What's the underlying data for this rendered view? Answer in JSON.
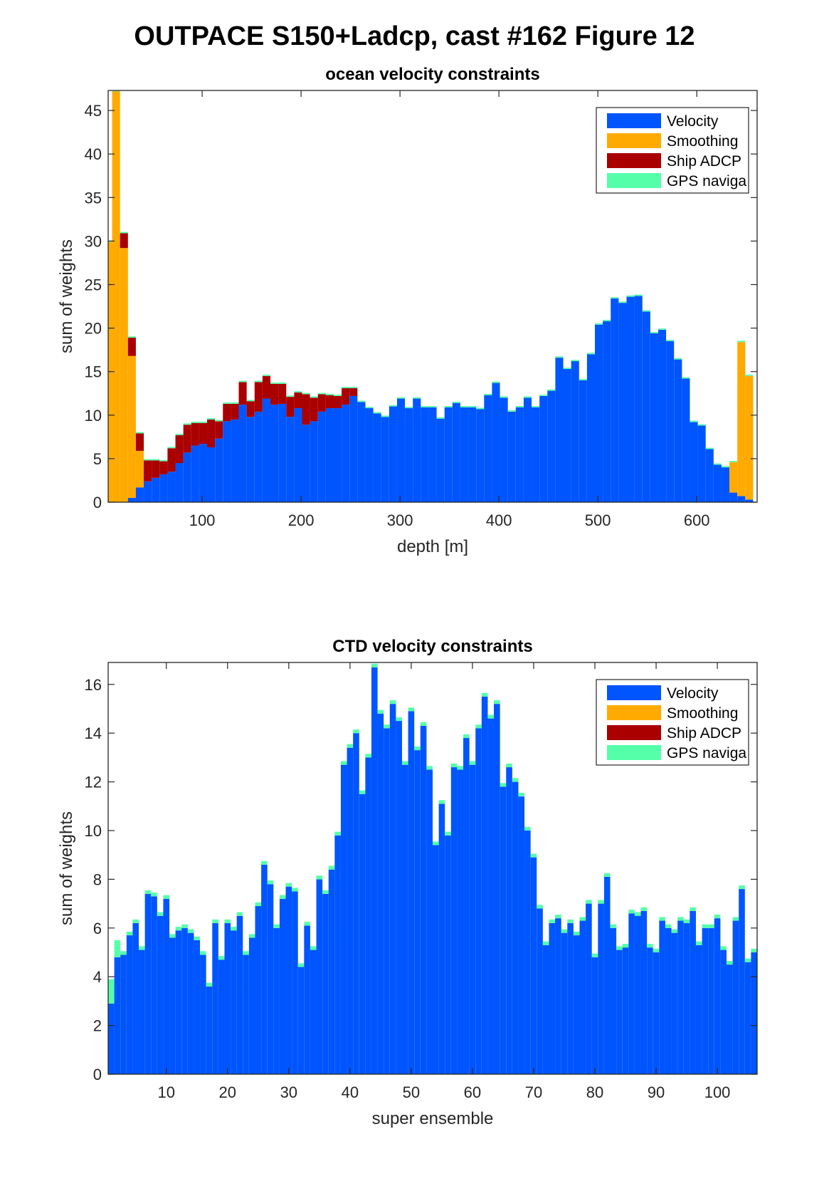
{
  "figure": {
    "title": "OUTPACE S150+Ladcp, cast #162  Figure 12"
  },
  "legend_colors": {
    "Velocity": "#0055ff",
    "Smoothing": "#ffaa00",
    "Ship ADCP": "#aa0000",
    "GPS naviga": "#55ffaa"
  },
  "chart_data": [
    {
      "type": "bar",
      "stacked": true,
      "title": "ocean velocity constraints",
      "xlabel": "depth [m]",
      "ylabel": "sum of weights",
      "xlim": [
        5,
        661
      ],
      "ylim": [
        0,
        47.3
      ],
      "xticks": [
        100,
        200,
        300,
        400,
        500,
        600
      ],
      "yticks": [
        0,
        5,
        10,
        15,
        20,
        25,
        30,
        35,
        40,
        45
      ],
      "grid": false,
      "legend_position": "top-right",
      "bin_width": 8,
      "x": [
        5,
        13,
        21,
        29,
        37,
        45,
        53,
        61,
        69,
        77,
        85,
        93,
        101,
        109,
        117,
        125,
        133,
        141,
        149,
        157,
        165,
        173,
        181,
        189,
        197,
        205,
        213,
        221,
        229,
        237,
        245,
        253,
        261,
        269,
        277,
        285,
        293,
        301,
        309,
        317,
        325,
        333,
        341,
        349,
        357,
        365,
        373,
        381,
        389,
        397,
        405,
        413,
        421,
        429,
        437,
        445,
        453,
        461,
        469,
        477,
        485,
        493,
        501,
        509,
        517,
        525,
        533,
        541,
        549,
        557,
        565,
        573,
        581,
        589,
        597,
        605,
        613,
        621,
        629,
        637,
        645,
        653
      ],
      "series": [
        {
          "name": "Velocity",
          "values": [
            0,
            0,
            0,
            0.5,
            1.7,
            2.4,
            2.8,
            3.2,
            3.5,
            4.5,
            5.7,
            6.5,
            6.7,
            6.3,
            7.3,
            9.3,
            9.5,
            11.2,
            9.8,
            10.4,
            11.9,
            11.2,
            11.3,
            9.8,
            10.8,
            8.9,
            9.3,
            10.4,
            10.8,
            10.8,
            11.2,
            12.2,
            11.5,
            10.8,
            10.2,
            9.8,
            11.0,
            11.9,
            10.8,
            11.9,
            10.9,
            10.9,
            9.6,
            10.9,
            11.4,
            10.9,
            10.9,
            10.7,
            12.3,
            13.7,
            12.0,
            10.4,
            10.9,
            12.0,
            10.9,
            12.2,
            12.8,
            16.6,
            15.3,
            16.2,
            14.0,
            17.0,
            20.4,
            20.8,
            23.4,
            22.9,
            23.6,
            23.7,
            21.9,
            19.4,
            19.8,
            18.5,
            16.4,
            14.2,
            9.2,
            8.8,
            6.1,
            4.3,
            4.0,
            1.1,
            0.7,
            0.3
          ]
        },
        {
          "name": "Smoothing",
          "values": [
            29.9,
            47.2,
            29.2,
            16.3,
            4.2,
            0,
            0,
            0,
            0,
            0,
            0,
            0,
            0,
            0,
            0,
            0,
            0,
            0,
            0,
            0,
            0,
            0,
            0,
            0,
            0,
            0,
            0,
            0,
            0,
            0,
            0,
            0,
            0,
            0,
            0,
            0,
            0,
            0,
            0,
            0,
            0,
            0,
            0,
            0,
            0,
            0,
            0,
            0,
            0,
            0,
            0,
            0,
            0,
            0,
            0,
            0,
            0,
            0,
            0,
            0,
            0,
            0,
            0,
            0,
            0,
            0,
            0,
            0,
            0,
            0,
            0,
            0,
            0,
            0,
            0,
            0,
            0,
            0,
            0,
            3.5,
            17.7,
            14.2
          ]
        },
        {
          "name": "Ship ADCP",
          "values": [
            0,
            0,
            1.7,
            2.1,
            2.0,
            2.4,
            2.0,
            1.5,
            2.7,
            3.2,
            3.2,
            2.6,
            2.4,
            3.2,
            2.0,
            2.0,
            1.8,
            2.6,
            1.8,
            3.4,
            2.6,
            2.4,
            2.3,
            2.3,
            1.8,
            3.5,
            2.7,
            2.0,
            1.5,
            1.4,
            1.9,
            0.9,
            0,
            0,
            0,
            0,
            0,
            0,
            0,
            0,
            0,
            0,
            0,
            0,
            0,
            0,
            0,
            0,
            0,
            0,
            0,
            0,
            0,
            0,
            0,
            0,
            0,
            0,
            0,
            0,
            0,
            0,
            0,
            0,
            0,
            0,
            0,
            0,
            0,
            0,
            0,
            0,
            0,
            0,
            0,
            0,
            0,
            0,
            0,
            0,
            0,
            0
          ]
        },
        {
          "name": "GPS naviga",
          "values": [
            0.15,
            0.15,
            0.15,
            0.15,
            0.15,
            0.15,
            0.15,
            0.15,
            0.15,
            0.15,
            0.15,
            0.15,
            0.15,
            0.15,
            0.15,
            0.15,
            0.15,
            0.15,
            0.15,
            0.15,
            0.15,
            0.15,
            0.15,
            0.15,
            0.15,
            0.15,
            0.15,
            0.15,
            0.15,
            0.15,
            0.15,
            0.15,
            0.15,
            0.15,
            0.15,
            0.15,
            0.15,
            0.15,
            0.15,
            0.15,
            0.15,
            0.15,
            0.15,
            0.15,
            0.15,
            0.15,
            0.15,
            0.15,
            0.15,
            0.15,
            0.15,
            0.15,
            0.15,
            0.15,
            0.15,
            0.15,
            0.15,
            0.15,
            0.15,
            0.15,
            0.15,
            0.15,
            0.15,
            0.15,
            0.15,
            0.15,
            0.15,
            0.15,
            0.15,
            0.15,
            0.15,
            0.15,
            0.15,
            0.15,
            0.15,
            0.15,
            0.15,
            0.15,
            0.15,
            0.15,
            0.15,
            0.15
          ]
        }
      ]
    },
    {
      "type": "bar",
      "stacked": true,
      "title": "CTD velocity constraints",
      "xlabel": "super ensemble",
      "ylabel": "sum of weights",
      "xlim": [
        0.5,
        106.5
      ],
      "ylim": [
        0,
        16.9
      ],
      "xticks": [
        10,
        20,
        30,
        40,
        50,
        60,
        70,
        80,
        90,
        100
      ],
      "yticks": [
        0,
        2,
        4,
        6,
        8,
        10,
        12,
        14,
        16
      ],
      "grid": false,
      "legend_position": "top-right",
      "bin_width": 1,
      "x": [
        1,
        2,
        3,
        4,
        5,
        6,
        7,
        8,
        9,
        10,
        11,
        12,
        13,
        14,
        15,
        16,
        17,
        18,
        19,
        20,
        21,
        22,
        23,
        24,
        25,
        26,
        27,
        28,
        29,
        30,
        31,
        32,
        33,
        34,
        35,
        36,
        37,
        38,
        39,
        40,
        41,
        42,
        43,
        44,
        45,
        46,
        47,
        48,
        49,
        50,
        51,
        52,
        53,
        54,
        55,
        56,
        57,
        58,
        59,
        60,
        61,
        62,
        63,
        64,
        65,
        66,
        67,
        68,
        69,
        70,
        71,
        72,
        73,
        74,
        75,
        76,
        77,
        78,
        79,
        80,
        81,
        82,
        83,
        84,
        85,
        86,
        87,
        88,
        89,
        90,
        91,
        92,
        93,
        94,
        95,
        96,
        97,
        98,
        99,
        100,
        101,
        102,
        103,
        104,
        105,
        106
      ],
      "series": [
        {
          "name": "Velocity",
          "values": [
            2.9,
            4.8,
            4.9,
            5.7,
            6.2,
            5.1,
            7.4,
            7.3,
            6.5,
            7.2,
            5.6,
            5.9,
            6.0,
            5.8,
            5.5,
            4.9,
            3.6,
            6.2,
            4.7,
            6.2,
            5.9,
            6.5,
            4.9,
            5.6,
            6.9,
            8.6,
            7.8,
            6.0,
            7.2,
            7.7,
            7.5,
            4.4,
            6.1,
            5.1,
            8.0,
            7.4,
            8.4,
            9.8,
            12.7,
            13.4,
            14.0,
            11.5,
            13.0,
            16.7,
            14.8,
            14.2,
            15.2,
            14.5,
            12.7,
            14.9,
            13.3,
            14.3,
            12.5,
            9.4,
            11.1,
            9.8,
            12.6,
            12.5,
            13.8,
            12.7,
            14.2,
            15.5,
            14.6,
            15.2,
            11.8,
            12.6,
            12.0,
            11.4,
            10.0,
            8.9,
            6.8,
            5.3,
            6.2,
            6.4,
            5.8,
            6.2,
            5.7,
            6.3,
            7.0,
            4.8,
            7.0,
            8.1,
            6.0,
            5.1,
            5.2,
            6.6,
            6.5,
            6.7,
            5.2,
            5.0,
            6.3,
            6.0,
            5.8,
            6.3,
            6.2,
            6.7,
            5.3,
            6.0,
            6.0,
            6.4,
            5.1,
            4.5,
            6.3,
            7.6,
            4.6,
            5.0
          ]
        },
        {
          "name": "Smoothing",
          "values": [
            0,
            0,
            0,
            0,
            0,
            0,
            0,
            0,
            0,
            0,
            0,
            0,
            0,
            0,
            0,
            0,
            0,
            0,
            0,
            0,
            0,
            0,
            0,
            0,
            0,
            0,
            0,
            0,
            0,
            0,
            0,
            0,
            0,
            0,
            0,
            0,
            0,
            0,
            0,
            0,
            0,
            0,
            0,
            0,
            0,
            0,
            0,
            0,
            0,
            0,
            0,
            0,
            0,
            0,
            0,
            0,
            0,
            0,
            0,
            0,
            0,
            0,
            0,
            0,
            0,
            0,
            0,
            0,
            0,
            0,
            0,
            0,
            0,
            0,
            0,
            0,
            0,
            0,
            0,
            0,
            0,
            0,
            0,
            0,
            0,
            0,
            0,
            0,
            0,
            0,
            0,
            0,
            0,
            0,
            0,
            0,
            0,
            0,
            0,
            0,
            0,
            0,
            0,
            0,
            0,
            0
          ]
        },
        {
          "name": "Ship ADCP",
          "values": [
            0,
            0,
            0,
            0,
            0,
            0,
            0,
            0,
            0,
            0,
            0,
            0,
            0,
            0,
            0,
            0,
            0,
            0,
            0,
            0,
            0,
            0,
            0,
            0,
            0,
            0,
            0,
            0,
            0,
            0,
            0,
            0,
            0,
            0,
            0,
            0,
            0,
            0,
            0,
            0,
            0,
            0,
            0,
            0,
            0,
            0,
            0,
            0,
            0,
            0,
            0,
            0,
            0,
            0,
            0,
            0,
            0,
            0,
            0,
            0,
            0,
            0,
            0,
            0,
            0,
            0,
            0,
            0,
            0,
            0,
            0,
            0,
            0,
            0,
            0,
            0,
            0,
            0,
            0,
            0,
            0,
            0,
            0,
            0,
            0,
            0,
            0,
            0,
            0,
            0,
            0,
            0,
            0,
            0,
            0,
            0,
            0,
            0,
            0,
            0,
            0,
            0,
            0,
            0,
            0,
            0
          ]
        },
        {
          "name": "GPS naviga",
          "values": [
            1.0,
            0.7,
            0.15,
            0.15,
            0.15,
            0.15,
            0.15,
            0.15,
            0.15,
            0.15,
            0.15,
            0.15,
            0.15,
            0.15,
            0.15,
            0.15,
            0.15,
            0.15,
            0.15,
            0.15,
            0.15,
            0.15,
            0.15,
            0.15,
            0.15,
            0.15,
            0.15,
            0.15,
            0.15,
            0.15,
            0.15,
            0.15,
            0.15,
            0.15,
            0.15,
            0.15,
            0.15,
            0.15,
            0.15,
            0.15,
            0.15,
            0.15,
            0.15,
            0.15,
            0.15,
            0.15,
            0.15,
            0.15,
            0.15,
            0.15,
            0.15,
            0.15,
            0.15,
            0.15,
            0.15,
            0.15,
            0.15,
            0.15,
            0.15,
            0.15,
            0.15,
            0.15,
            0.15,
            0.15,
            0.15,
            0.15,
            0.15,
            0.15,
            0.15,
            0.15,
            0.15,
            0.15,
            0.15,
            0.15,
            0.15,
            0.15,
            0.15,
            0.15,
            0.15,
            0.15,
            0.15,
            0.15,
            0.15,
            0.15,
            0.15,
            0.15,
            0.15,
            0.15,
            0.15,
            0.15,
            0.15,
            0.15,
            0.15,
            0.15,
            0.15,
            0.15,
            0.15,
            0.15,
            0.15,
            0.15,
            0.15,
            0.15,
            0.15,
            0.15,
            0.15,
            0.15
          ]
        }
      ]
    }
  ]
}
